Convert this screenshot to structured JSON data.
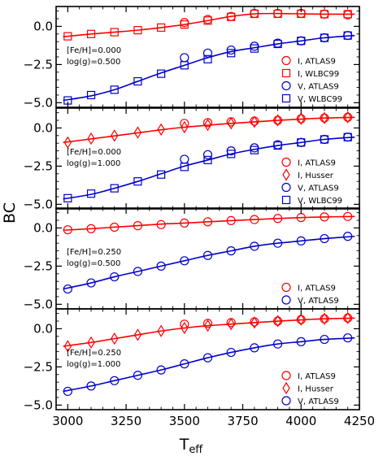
{
  "chart_data": {
    "type": "line",
    "xlabel": "T",
    "xlabel_sub": "eff",
    "ylabel": "BC",
    "xlim": [
      2950,
      4250
    ],
    "ylim": [
      -5.3,
      1.3
    ],
    "xticks": [
      "3000",
      "3250",
      "3500",
      "3750",
      "4000",
      "4250"
    ],
    "yticks": [
      "0.0",
      "−2.5",
      "−5.0"
    ],
    "colors": {
      "red": "#ff0000",
      "blue": "#0000cc"
    },
    "panels": [
      {
        "annotation": [
          "[Fe/H]=0.000",
          "log(g)=0.500"
        ],
        "curves": [
          {
            "color": "red",
            "x": [
              2980,
              3100,
              3200,
              3300,
              3400,
              3500,
              3600,
              3700,
              3800,
              3900,
              4000,
              4100,
              4230
            ],
            "y": [
              -0.68,
              -0.5,
              -0.38,
              -0.25,
              -0.08,
              0.12,
              0.38,
              0.65,
              0.82,
              0.84,
              0.82,
              0.8,
              0.8
            ]
          },
          {
            "color": "blue",
            "x": [
              2980,
              3100,
              3200,
              3300,
              3400,
              3500,
              3600,
              3700,
              3800,
              3900,
              4000,
              4100,
              4230
            ],
            "y": [
              -4.85,
              -4.55,
              -4.15,
              -3.6,
              -3.05,
              -2.55,
              -2.05,
              -1.65,
              -1.4,
              -1.15,
              -0.95,
              -0.75,
              -0.6
            ]
          }
        ],
        "series": [
          {
            "name": "I, ATLAS9",
            "color": "red",
            "marker": "circle",
            "x": [
              3500,
              3600,
              3700,
              3800,
              3900,
              4000,
              4100,
              4200
            ],
            "y": [
              0.25,
              0.45,
              0.65,
              0.85,
              0.85,
              0.85,
              0.8,
              0.75
            ]
          },
          {
            "name": "I, WLBC99",
            "color": "red",
            "marker": "square",
            "x": [
              3000,
              3100,
              3200,
              3300,
              3400,
              3500,
              3600,
              3700,
              3800,
              3900,
              4000,
              4100,
              4200
            ],
            "y": [
              -0.65,
              -0.5,
              -0.38,
              -0.25,
              -0.08,
              0.12,
              0.38,
              0.62,
              0.82,
              0.82,
              0.82,
              0.8,
              0.8
            ]
          },
          {
            "name": "V, ATLAS9",
            "color": "blue",
            "marker": "circle",
            "x": [
              3500,
              3600,
              3700,
              3800,
              3900,
              4000,
              4100,
              4200
            ],
            "y": [
              -2.05,
              -1.75,
              -1.55,
              -1.3,
              -1.1,
              -0.95,
              -0.75,
              -0.6
            ]
          },
          {
            "name": "V, WLBC99",
            "color": "blue",
            "marker": "square",
            "x": [
              3000,
              3100,
              3200,
              3300,
              3400,
              3500,
              3600,
              3700,
              3800,
              3900,
              4000,
              4100,
              4200
            ],
            "y": [
              -4.85,
              -4.5,
              -4.15,
              -3.6,
              -3.1,
              -2.55,
              -2.15,
              -1.75,
              -1.45,
              -1.15,
              -0.95,
              -0.75,
              -0.6
            ]
          }
        ]
      },
      {
        "annotation": [
          "[Fe/H]=0.000",
          "log(g)=1.000"
        ],
        "curves": [
          {
            "color": "red",
            "x": [
              2980,
              3100,
              3200,
              3300,
              3400,
              3500,
              3600,
              3700,
              3800,
              3900,
              4000,
              4100,
              4230
            ],
            "y": [
              -0.95,
              -0.72,
              -0.52,
              -0.32,
              -0.12,
              0.05,
              0.18,
              0.3,
              0.4,
              0.5,
              0.58,
              0.65,
              0.7
            ]
          },
          {
            "color": "blue",
            "x": [
              2980,
              3100,
              3200,
              3300,
              3400,
              3500,
              3600,
              3700,
              3800,
              3900,
              4000,
              4100,
              4230
            ],
            "y": [
              -4.65,
              -4.35,
              -3.95,
              -3.5,
              -3.0,
              -2.5,
              -2.1,
              -1.7,
              -1.4,
              -1.15,
              -0.95,
              -0.75,
              -0.6
            ]
          }
        ],
        "series": [
          {
            "name": "I, ATLAS9",
            "color": "red",
            "marker": "circle",
            "x": [
              3500,
              3600,
              3700,
              3800,
              3900,
              4000,
              4100,
              4200
            ],
            "y": [
              0.3,
              0.35,
              0.4,
              0.45,
              0.5,
              0.6,
              0.65,
              0.7
            ]
          },
          {
            "name": "I, Husser",
            "color": "red",
            "marker": "diamond",
            "x": [
              3000,
              3100,
              3200,
              3300,
              3400,
              3500,
              3600,
              3700,
              3800,
              3900,
              4000,
              4100,
              4200
            ],
            "y": [
              -0.95,
              -0.7,
              -0.5,
              -0.3,
              -0.1,
              0.05,
              0.2,
              0.3,
              0.4,
              0.5,
              0.6,
              0.65,
              0.7
            ]
          },
          {
            "name": "V, ATLAS9",
            "color": "blue",
            "marker": "circle",
            "x": [
              3500,
              3600,
              3700,
              3800,
              3900,
              4000,
              4100,
              4200
            ],
            "y": [
              -2.05,
              -1.75,
              -1.5,
              -1.3,
              -1.1,
              -0.95,
              -0.75,
              -0.6
            ]
          },
          {
            "name": "V, WLBC99",
            "color": "blue",
            "marker": "square",
            "x": [
              3000,
              3100,
              3200,
              3300,
              3400,
              3500,
              3600,
              3700,
              3800,
              3900,
              4000,
              4100,
              4200
            ],
            "y": [
              -4.6,
              -4.3,
              -3.95,
              -3.5,
              -3.05,
              -2.55,
              -2.1,
              -1.7,
              -1.45,
              -1.15,
              -0.95,
              -0.75,
              -0.6
            ]
          }
        ]
      },
      {
        "annotation": [
          "[Fe/H]=0.250",
          "log(g)=0.500"
        ],
        "curves": [
          {
            "color": "red",
            "x": [
              2980,
              3100,
              3200,
              3300,
              3400,
              3500,
              3600,
              3700,
              3800,
              3900,
              4000,
              4100,
              4230
            ],
            "y": [
              -0.15,
              -0.05,
              0.05,
              0.15,
              0.25,
              0.32,
              0.4,
              0.48,
              0.55,
              0.62,
              0.68,
              0.72,
              0.75
            ]
          },
          {
            "color": "blue",
            "x": [
              2980,
              3100,
              3200,
              3300,
              3400,
              3500,
              3600,
              3700,
              3800,
              3900,
              4000,
              4100,
              4230
            ],
            "y": [
              -4.0,
              -3.6,
              -3.2,
              -2.85,
              -2.5,
              -2.15,
              -1.8,
              -1.5,
              -1.2,
              -1.0,
              -0.85,
              -0.7,
              -0.55
            ]
          }
        ],
        "series": [
          {
            "name": "I, ATLAS9",
            "color": "red",
            "marker": "circle",
            "x": [
              3000,
              3100,
              3200,
              3300,
              3400,
              3500,
              3600,
              3700,
              3800,
              3900,
              4000,
              4100,
              4200
            ],
            "y": [
              -0.12,
              -0.05,
              0.05,
              0.15,
              0.22,
              0.32,
              0.4,
              0.48,
              0.55,
              0.62,
              0.68,
              0.72,
              0.75
            ]
          },
          {
            "name": "V, ATLAS9",
            "color": "blue",
            "marker": "circle",
            "x": [
              3000,
              3100,
              3200,
              3300,
              3400,
              3500,
              3600,
              3700,
              3800,
              3900,
              4000,
              4100,
              4200
            ],
            "y": [
              -4.0,
              -3.6,
              -3.2,
              -2.85,
              -2.5,
              -2.15,
              -1.8,
              -1.5,
              -1.2,
              -1.0,
              -0.85,
              -0.7,
              -0.55
            ]
          }
        ]
      },
      {
        "annotation": [
          "[Fe/H]=0.250",
          "log(g)=1.000"
        ],
        "curves": [
          {
            "color": "red",
            "x": [
              2980,
              3100,
              3200,
              3300,
              3400,
              3500,
              3600,
              3700,
              3800,
              3900,
              4000,
              4100,
              4230
            ],
            "y": [
              -1.15,
              -0.9,
              -0.65,
              -0.4,
              -0.15,
              0.05,
              0.2,
              0.3,
              0.4,
              0.5,
              0.58,
              0.65,
              0.7
            ]
          },
          {
            "color": "blue",
            "x": [
              2980,
              3100,
              3200,
              3300,
              3400,
              3500,
              3600,
              3700,
              3800,
              3900,
              4000,
              4100,
              4230
            ],
            "y": [
              -4.1,
              -3.75,
              -3.4,
              -3.05,
              -2.7,
              -2.3,
              -1.9,
              -1.55,
              -1.25,
              -1.0,
              -0.85,
              -0.7,
              -0.6
            ]
          }
        ],
        "series": [
          {
            "name": "I, ATLAS9",
            "color": "red",
            "marker": "circle",
            "x": [
              3500,
              3600,
              3700,
              3800,
              3900,
              4000,
              4100,
              4200
            ],
            "y": [
              0.3,
              0.35,
              0.4,
              0.45,
              0.5,
              0.6,
              0.65,
              0.7
            ]
          },
          {
            "name": "I, Husser",
            "color": "red",
            "marker": "diamond",
            "x": [
              3000,
              3100,
              3200,
              3300,
              3400,
              3500,
              3600,
              3700,
              3800,
              3900,
              4000,
              4100,
              4200
            ],
            "y": [
              -1.15,
              -0.9,
              -0.65,
              -0.4,
              -0.15,
              0.05,
              0.2,
              0.3,
              0.4,
              0.5,
              0.6,
              0.65,
              0.7
            ]
          },
          {
            "name": "V, ATLAS9",
            "color": "blue",
            "marker": "circle",
            "x": [
              3000,
              3100,
              3200,
              3300,
              3400,
              3500,
              3600,
              3700,
              3800,
              3900,
              4000,
              4100,
              4200
            ],
            "y": [
              -4.1,
              -3.75,
              -3.4,
              -3.05,
              -2.7,
              -2.3,
              -1.9,
              -1.55,
              -1.25,
              -1.0,
              -0.85,
              -0.7,
              -0.6
            ]
          }
        ]
      }
    ]
  }
}
